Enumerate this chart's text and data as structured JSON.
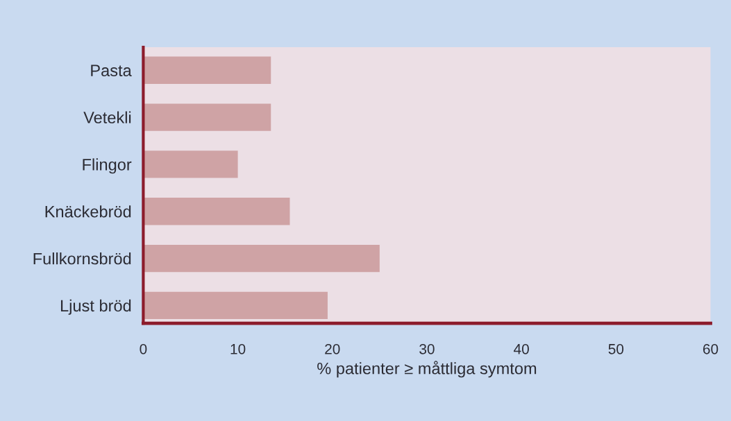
{
  "chart_data": {
    "type": "bar",
    "orientation": "horizontal",
    "categories": [
      "Pasta",
      "Vetekli",
      "Flingor",
      "Knäckebröd",
      "Fullkornsbröd",
      "Ljust bröd"
    ],
    "values": [
      13.5,
      13.5,
      10,
      15.5,
      25,
      19.5
    ],
    "color": "#cfa3a5",
    "xlabel": "% patienter ≥ måttliga symtom",
    "xlim": [
      0,
      60
    ],
    "xticks": [
      0,
      10,
      20,
      30,
      40,
      50,
      60
    ],
    "grid": false
  }
}
